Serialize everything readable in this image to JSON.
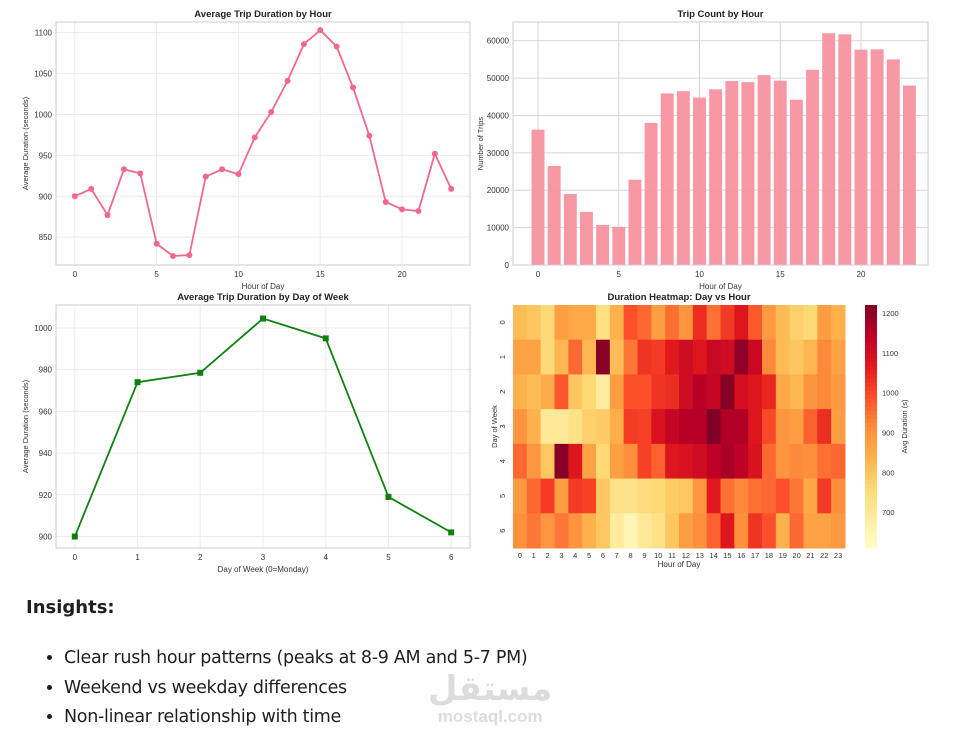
{
  "chart_data": [
    {
      "type": "line",
      "title": "Average Trip Duration by Hour",
      "xlabel": "Hour of Day",
      "ylabel": "Average Duration (seconds)",
      "x": [
        0,
        1,
        2,
        3,
        4,
        5,
        6,
        7,
        8,
        9,
        10,
        11,
        12,
        13,
        14,
        15,
        16,
        17,
        18,
        19,
        20,
        21,
        22,
        23
      ],
      "y": [
        900,
        909,
        877,
        933,
        928,
        842,
        827,
        828,
        924,
        933,
        927,
        972,
        1003,
        1041,
        1086,
        1103,
        1083,
        1033,
        974,
        893,
        884,
        882,
        952,
        909
      ],
      "xticks": [
        0,
        5,
        10,
        15,
        20
      ],
      "yticks": [
        850,
        900,
        950,
        1000,
        1050,
        1100
      ],
      "xlim": [
        -1.15,
        24.15
      ],
      "ylim": [
        816,
        1113
      ],
      "color": "#f2698a",
      "marker": "circle",
      "grid": true
    },
    {
      "type": "bar",
      "title": "Trip Count by Hour",
      "xlabel": "Hour of Day",
      "ylabel": "Number of Trips",
      "x": [
        0,
        1,
        2,
        3,
        4,
        5,
        6,
        7,
        8,
        9,
        10,
        11,
        12,
        13,
        14,
        15,
        16,
        17,
        18,
        19,
        20,
        21,
        22,
        23
      ],
      "values": [
        36200,
        26500,
        19000,
        14200,
        10700,
        10200,
        22800,
        38000,
        45900,
        46500,
        44800,
        47000,
        49200,
        48900,
        50800,
        49300,
        44200,
        52200,
        62000,
        61700,
        57600,
        57700,
        55000,
        48000
      ],
      "xticks": [
        0,
        5,
        10,
        15,
        20
      ],
      "yticks": [
        0,
        10000,
        20000,
        30000,
        40000,
        50000,
        60000
      ],
      "xlim": [
        -1.55,
        24.15
      ],
      "ylim": [
        0,
        65000
      ],
      "color": "#f7929f",
      "grid": true
    },
    {
      "type": "line",
      "title": "Average Trip Duration by Day of Week",
      "xlabel": "Day of Week (0=Monday)",
      "ylabel": "Average Duration (seconds)",
      "x": [
        0,
        1,
        2,
        3,
        4,
        5,
        6
      ],
      "y": [
        900,
        974,
        978.5,
        1004.5,
        995,
        919,
        902
      ],
      "xticks": [
        0,
        1,
        2,
        3,
        4,
        5,
        6
      ],
      "yticks": [
        900,
        920,
        940,
        960,
        980,
        1000
      ],
      "xlim": [
        -0.3,
        6.3
      ],
      "ylim": [
        894.5,
        1011
      ],
      "color": "#108010",
      "marker": "square",
      "grid": true
    },
    {
      "type": "heatmap",
      "title": "Duration Heatmap: Day vs Hour",
      "xlabel": "Hour of Day",
      "ylabel": "Day of Week",
      "x": [
        0,
        1,
        2,
        3,
        4,
        5,
        6,
        7,
        8,
        9,
        10,
        11,
        12,
        13,
        14,
        15,
        16,
        17,
        18,
        19,
        20,
        21,
        22,
        23
      ],
      "y": [
        0,
        1,
        2,
        3,
        4,
        5,
        6
      ],
      "values": [
        [
          820,
          800,
          760,
          880,
          860,
          860,
          740,
          840,
          990,
          960,
          880,
          950,
          900,
          1040,
          950,
          1020,
          1080,
          980,
          890,
          820,
          780,
          760,
          880,
          840
        ],
        [
          870,
          870,
          760,
          830,
          960,
          830,
          1210,
          820,
          940,
          1030,
          1020,
          1070,
          1110,
          1080,
          1120,
          1110,
          1200,
          1120,
          920,
          820,
          800,
          830,
          920,
          870
        ],
        [
          840,
          820,
          850,
          980,
          800,
          760,
          690,
          880,
          990,
          990,
          1030,
          1040,
          1110,
          1150,
          1130,
          1210,
          1100,
          1080,
          1050,
          860,
          830,
          900,
          920,
          890
        ],
        [
          900,
          840,
          700,
          700,
          730,
          780,
          790,
          850,
          1020,
          1010,
          1090,
          1130,
          1150,
          1150,
          1230,
          1160,
          1160,
          1080,
          1000,
          900,
          880,
          970,
          1040,
          880
        ],
        [
          960,
          900,
          800,
          1210,
          1080,
          870,
          760,
          880,
          910,
          1010,
          970,
          1080,
          1090,
          1110,
          1140,
          1170,
          1140,
          1090,
          960,
          900,
          920,
          910,
          950,
          960
        ],
        [
          890,
          960,
          1020,
          880,
          1020,
          1010,
          800,
          730,
          730,
          750,
          760,
          790,
          800,
          900,
          1070,
          950,
          920,
          950,
          960,
          990,
          940,
          860,
          1020,
          910
        ],
        [
          910,
          940,
          900,
          940,
          900,
          840,
          800,
          690,
          650,
          700,
          730,
          800,
          880,
          910,
          970,
          1080,
          910,
          1030,
          990,
          840,
          960,
          870,
          870,
          890
        ]
      ],
      "colormap": "YlOrRd",
      "colorbar_label": "Avg Duration (s)",
      "colorbar_ticks": [
        700,
        800,
        900,
        1000,
        1100,
        1200
      ],
      "vmin": 610,
      "vmax": 1220
    }
  ],
  "insights": {
    "heading": "Insights:",
    "items": [
      "Clear rush hour patterns (peaks at 8-9 AM and 5-7 PM)",
      "Weekend vs weekday differences",
      "Non-linear relationship with time"
    ]
  },
  "watermark": {
    "arabic": "مستقل",
    "latin": "mostaql.com"
  }
}
